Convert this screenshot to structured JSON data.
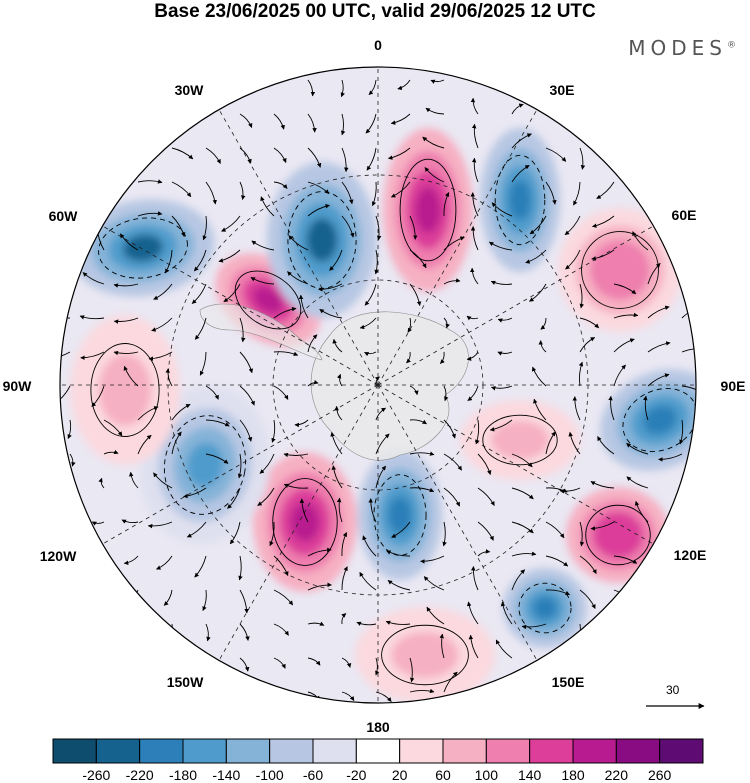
{
  "title": "Base 23/06/2025 00 UTC, valid 29/06/2025 12 UTC",
  "brand": "MODES",
  "brand_mark": "®",
  "longitude_labels": [
    {
      "key": "0",
      "text": "0"
    },
    {
      "key": "30E",
      "text": "30E"
    },
    {
      "key": "60E",
      "text": "60E"
    },
    {
      "key": "90E",
      "text": "90E"
    },
    {
      "key": "120E",
      "text": "120E"
    },
    {
      "key": "150E",
      "text": "150E"
    },
    {
      "key": "180",
      "text": "180"
    },
    {
      "key": "150W",
      "text": "150W"
    },
    {
      "key": "120W",
      "text": "120W"
    },
    {
      "key": "90W",
      "text": "90W"
    },
    {
      "key": "60W",
      "text": "60W"
    },
    {
      "key": "30W",
      "text": "30W"
    }
  ],
  "reference_vector_label": "30",
  "colorbar": {
    "colors": [
      "#0e4d6e",
      "#15628f",
      "#2c7fb8",
      "#4f9ccc",
      "#85b3d8",
      "#b7c7e3",
      "#dfe0ef",
      "#ffffff",
      "#fbd9df",
      "#f6b0c3",
      "#ee7fae",
      "#dc3e9a",
      "#b81b8f",
      "#8a0c82",
      "#5e0b73"
    ],
    "tick_labels": [
      "-260",
      "-220",
      "-180",
      "-140",
      "-100",
      "-60",
      "-20",
      "20",
      "60",
      "100",
      "140",
      "180",
      "220",
      "260"
    ]
  },
  "map_data": {
    "projection": "south polar stereographic",
    "anomaly_centers": [
      {
        "lon_label": "60W",
        "sign": "negative",
        "strength": -220
      },
      {
        "lon_label": "30W-60W",
        "sign": "positive",
        "strength": 220
      },
      {
        "lon_label": "30W",
        "sign": "negative",
        "strength": -220
      },
      {
        "lon_label": "0",
        "sign": "positive",
        "strength": 220
      },
      {
        "lon_label": "30E",
        "sign": "negative",
        "strength": -180
      },
      {
        "lon_label": "60E",
        "sign": "positive",
        "strength": 140
      },
      {
        "lon_label": "90E",
        "sign": "negative",
        "strength": -180
      },
      {
        "lon_label": "120E",
        "sign": "positive",
        "strength": 180
      },
      {
        "lon_label": "150E",
        "sign": "negative",
        "strength": -180
      },
      {
        "lon_label": "180",
        "sign": "positive",
        "strength": 100
      },
      {
        "lon_label": "150W",
        "sign": "positive",
        "strength": 220
      },
      {
        "lon_label": "150W-180",
        "sign": "negative",
        "strength": -180
      },
      {
        "lon_label": "120W",
        "sign": "negative",
        "strength": -140
      },
      {
        "lon_label": "90W",
        "sign": "positive",
        "strength": 100
      },
      {
        "lon_label": "90E-120E",
        "sign": "positive",
        "strength": 100
      }
    ]
  }
}
